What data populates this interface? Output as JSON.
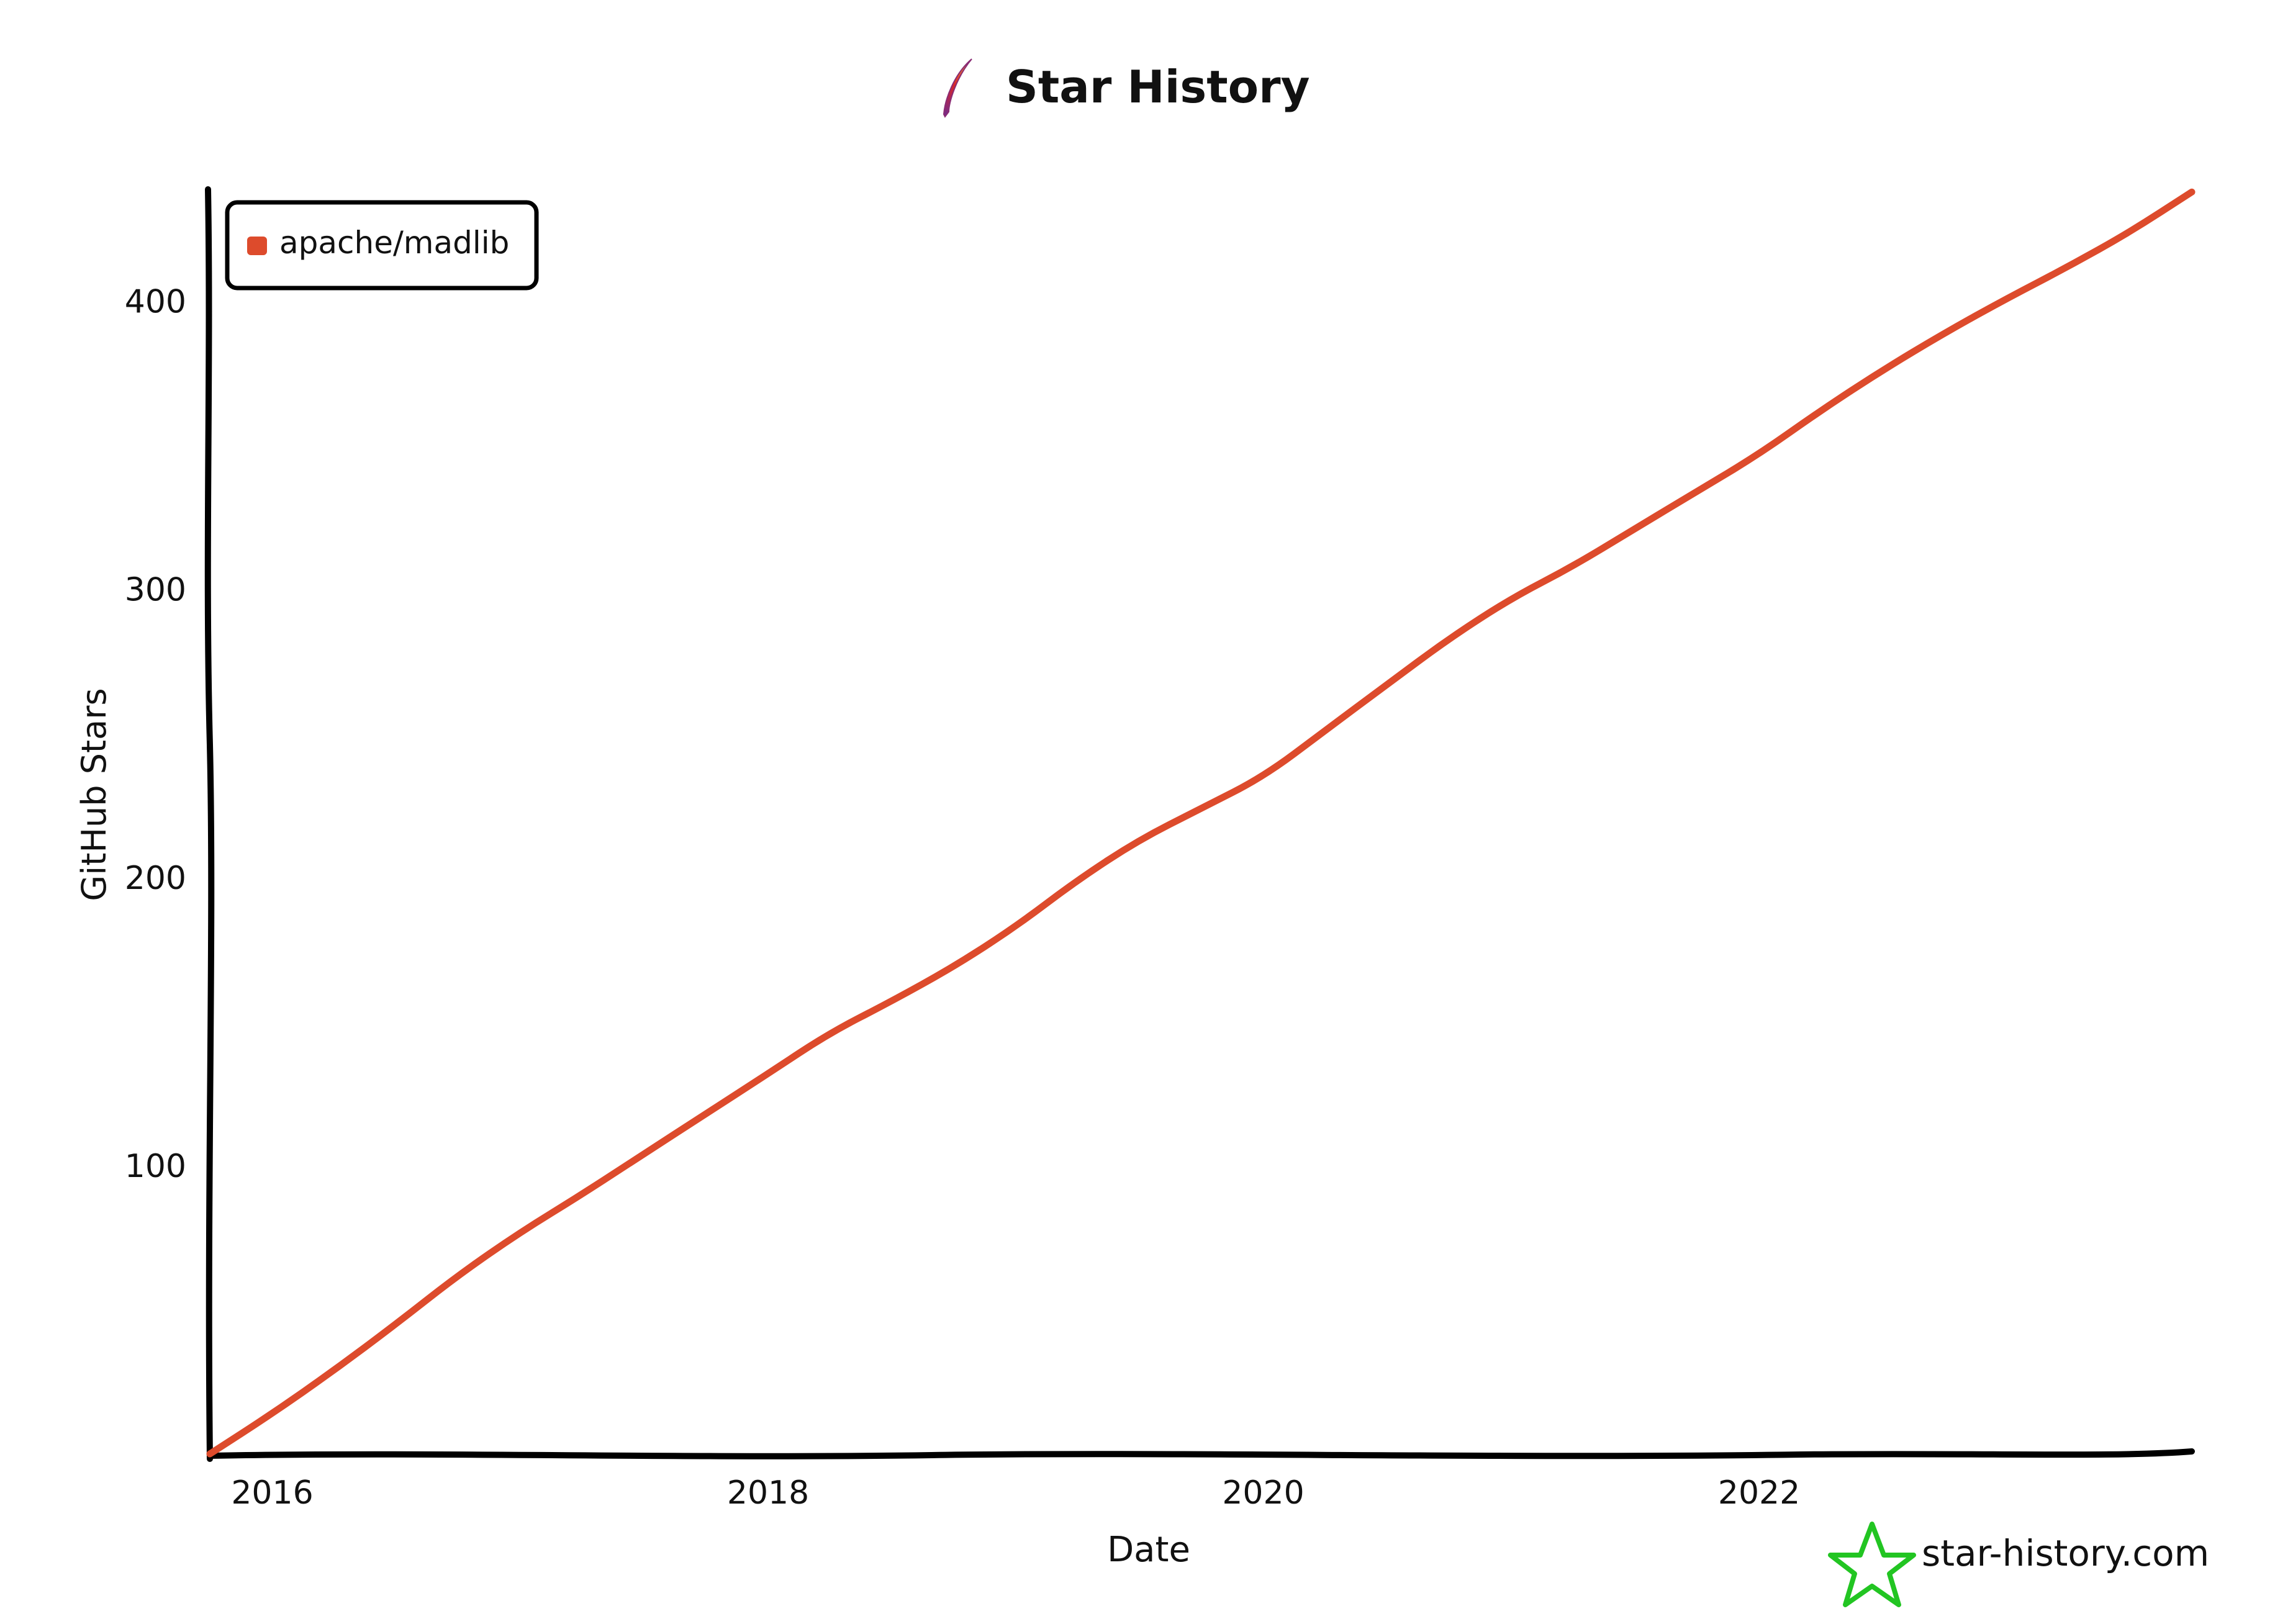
{
  "chart_data": {
    "type": "line",
    "title": "Star History",
    "xlabel": "Date",
    "ylabel": "GitHub Stars",
    "x_ticks": [
      "2016",
      "2018",
      "2020",
      "2022"
    ],
    "y_ticks": [
      100,
      200,
      300,
      400
    ],
    "xlim": [
      "2015-10-01",
      "2023-10-01"
    ],
    "ylim": [
      0,
      440
    ],
    "grid": false,
    "legend_placement": "top-left",
    "series": [
      {
        "name": "apache/madlib",
        "color": "#dd4b2c",
        "points": [
          [
            "2015-10-01",
            0
          ],
          [
            "2016-01-01",
            14
          ],
          [
            "2016-04-01",
            29
          ],
          [
            "2016-07-01",
            45
          ],
          [
            "2016-10-01",
            62
          ],
          [
            "2017-01-01",
            77
          ],
          [
            "2017-04-01",
            90
          ],
          [
            "2017-07-01",
            104
          ],
          [
            "2017-10-01",
            118
          ],
          [
            "2018-01-01",
            132
          ],
          [
            "2018-04-01",
            146
          ],
          [
            "2018-07-01",
            157
          ],
          [
            "2018-10-01",
            169
          ],
          [
            "2019-01-01",
            183
          ],
          [
            "2019-04-01",
            199
          ],
          [
            "2019-07-01",
            213
          ],
          [
            "2019-10-01",
            224
          ],
          [
            "2020-01-01",
            235
          ],
          [
            "2020-04-01",
            251
          ],
          [
            "2020-07-01",
            267
          ],
          [
            "2020-10-01",
            283
          ],
          [
            "2021-01-01",
            297
          ],
          [
            "2021-04-01",
            308
          ],
          [
            "2021-07-01",
            321
          ],
          [
            "2021-10-01",
            334
          ],
          [
            "2022-01-01",
            347
          ],
          [
            "2022-04-01",
            362
          ],
          [
            "2022-07-01",
            376
          ],
          [
            "2022-10-01",
            389
          ],
          [
            "2023-01-01",
            401
          ],
          [
            "2023-04-01",
            412
          ],
          [
            "2023-07-01",
            424
          ],
          [
            "2023-10-01",
            438
          ]
        ]
      }
    ]
  },
  "watermark": {
    "text": "star-history.com",
    "icon": "star-history-logo-icon",
    "color": "#22c522"
  },
  "title_icon": "apache-feather-icon"
}
